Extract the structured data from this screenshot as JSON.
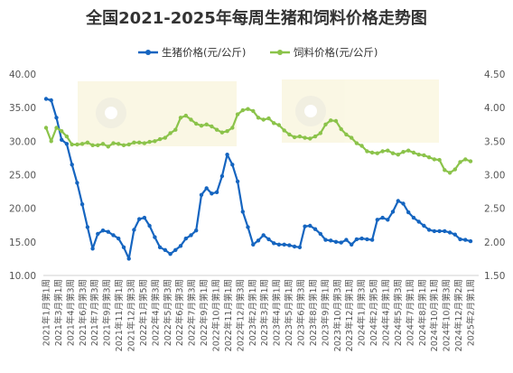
{
  "chart_data": {
    "type": "line",
    "title": "全国2021-2025年每周生猪和饲料价格走势图",
    "xlabel": "",
    "ylabel": "",
    "legend_position": "top",
    "grid": false,
    "x_tick_labels": [
      "2021年1月第1周",
      "2021年3月第1周",
      "2021年4月第3周",
      "2021年6月第3周",
      "2021年7月第3周",
      "2021年9月第3周",
      "2021年11月第1周",
      "2021年12月第3周",
      "2022年1月第5周",
      "2022年4月第3周",
      "2022年5月第3周",
      "2022年6月第3周",
      "2022年7月第3周",
      "2022年9月第1周",
      "2022年10月第1周",
      "2022年11月第1周",
      "2022年12月第3周",
      "2023年2月第1周",
      "2023年3月第1周",
      "2023年4月第1周",
      "2023年5月第1周",
      "2023年6月第3周",
      "2023年8月第1周",
      "2023年9月第1周",
      "2023年10月第3周",
      "2023年12月第1周",
      "2024年1月第3周",
      "2024年2月第5周",
      "2024年4月第1周",
      "2024年5月第3周",
      "2024年7月第1周",
      "2024年8月第1周",
      "2024年10月第1周",
      "2024年10月第3周",
      "2024年12月第2周",
      "2025年2月第1周"
    ],
    "y_left": {
      "min": 10,
      "max": 40,
      "ticks": [
        "10.00",
        "15.00",
        "20.00",
        "25.00",
        "30.00",
        "35.00",
        "40.00"
      ]
    },
    "y_right": {
      "min": 1.5,
      "max": 4.5,
      "ticks": [
        "1.50",
        "2.00",
        "2.50",
        "3.00",
        "3.50",
        "4.00",
        "4.50"
      ]
    },
    "series": [
      {
        "name": "生猪价格(元/公斤)",
        "axis": "left",
        "color": "#1565C0",
        "values": [
          36.3,
          36.1,
          33.5,
          30.2,
          29.6,
          26.5,
          23.8,
          20.6,
          17.2,
          14.0,
          16.2,
          16.7,
          16.5,
          16.0,
          15.5,
          14.2,
          12.5,
          16.8,
          18.4,
          18.6,
          17.4,
          15.7,
          14.2,
          13.8,
          13.2,
          13.8,
          14.4,
          15.5,
          16.0,
          16.7,
          22.0,
          23.0,
          22.2,
          22.4,
          24.8,
          28.0,
          26.5,
          24.0,
          19.5,
          17.2,
          14.6,
          15.2,
          16.0,
          15.4,
          14.8,
          14.6,
          14.6,
          14.5,
          14.3,
          14.2,
          17.3,
          17.4,
          16.9,
          16.2,
          15.3,
          15.2,
          15.0,
          14.9,
          15.3,
          14.6,
          15.4,
          15.5,
          15.4,
          15.3,
          18.3,
          18.6,
          18.3,
          19.5,
          21.1,
          20.7,
          19.4,
          18.6,
          18.0,
          17.4,
          16.8,
          16.6,
          16.6,
          16.6,
          16.4,
          16.1,
          15.4,
          15.3,
          15.1
        ]
      },
      {
        "name": "饲料价格(元/公斤)",
        "axis": "left",
        "color": "#8BC34A",
        "values": [
          32.0,
          30.0,
          32.0,
          31.5,
          30.7,
          29.5,
          29.5,
          29.6,
          29.8,
          29.4,
          29.4,
          29.6,
          29.2,
          29.7,
          29.6,
          29.4,
          29.5,
          29.8,
          29.8,
          29.7,
          29.9,
          30.0,
          30.3,
          30.5,
          31.2,
          31.7,
          33.5,
          33.8,
          33.2,
          32.6,
          32.3,
          32.5,
          32.2,
          31.7,
          31.3,
          31.5,
          32.0,
          34.0,
          34.6,
          34.8,
          34.5,
          33.5,
          33.2,
          33.4,
          32.7,
          32.4,
          31.6,
          31.0,
          30.6,
          30.7,
          30.5,
          30.4,
          30.7,
          31.2,
          32.5,
          33.1,
          33.0,
          31.8,
          31.0,
          30.5,
          29.7,
          29.3,
          28.5,
          28.3,
          28.2,
          28.5,
          28.6,
          28.2,
          28.0,
          28.4,
          28.6,
          28.3,
          28.0,
          27.9,
          27.6,
          27.3,
          27.2,
          25.7,
          25.3,
          25.8,
          26.9,
          27.3,
          27.0
        ]
      }
    ]
  }
}
